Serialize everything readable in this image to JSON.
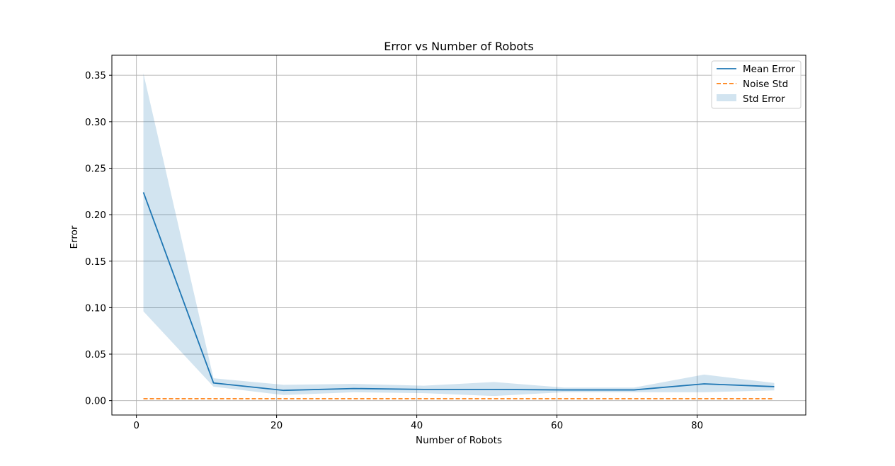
{
  "chart_data": {
    "type": "line",
    "title": "Error vs Number of Robots",
    "xlabel": "Number of Robots",
    "ylabel": "Error",
    "xlim": [
      -3.5,
      95.5
    ],
    "ylim": [
      -0.0155,
      0.3715
    ],
    "xticks": [
      0,
      20,
      40,
      60,
      80
    ],
    "yticks": [
      0.0,
      0.05,
      0.1,
      0.15,
      0.2,
      0.25,
      0.3,
      0.35
    ],
    "xtick_labels": [
      "0",
      "20",
      "40",
      "60",
      "80"
    ],
    "ytick_labels": [
      "0.00",
      "0.05",
      "0.10",
      "0.15",
      "0.20",
      "0.25",
      "0.30",
      "0.35"
    ],
    "grid": true,
    "legend_position": "top-right",
    "x": [
      1,
      11,
      21,
      31,
      41,
      51,
      61,
      71,
      81,
      91
    ],
    "series": [
      {
        "name": "Mean Error",
        "style": "solid",
        "color": "#1f77b4",
        "values": [
          0.224,
          0.019,
          0.011,
          0.013,
          0.012,
          0.012,
          0.0115,
          0.0115,
          0.018,
          0.015
        ]
      },
      {
        "name": "Noise Std",
        "style": "dashed",
        "color": "#ff7f0e",
        "values": [
          0.002,
          0.002,
          0.002,
          0.002,
          0.002,
          0.002,
          0.002,
          0.002,
          0.002,
          0.002
        ]
      }
    ],
    "band": {
      "name": "Std Error",
      "color": "#1f77b4",
      "opacity": 0.2,
      "upper": [
        0.352,
        0.024,
        0.017,
        0.018,
        0.016,
        0.02,
        0.014,
        0.014,
        0.028,
        0.019
      ],
      "lower": [
        0.096,
        0.015,
        0.006,
        0.009,
        0.008,
        0.005,
        0.009,
        0.009,
        0.009,
        0.011
      ]
    }
  }
}
